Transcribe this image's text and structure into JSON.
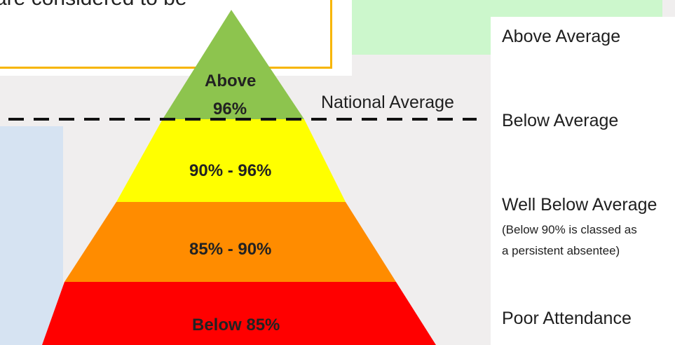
{
  "note": {
    "text": "are considered to be"
  },
  "pyramid": {
    "tiers": [
      {
        "line1": "Above",
        "line2": "96%",
        "color": "#8dc44e"
      },
      {
        "line1": "90% - 96%",
        "color": "#ffff00"
      },
      {
        "line1": "85% - 90%",
        "color": "#ff8c00"
      },
      {
        "line1": "Below 85%",
        "color": "#ff0000"
      }
    ],
    "national_average_label": "National Average"
  },
  "legend": {
    "items": [
      {
        "label": "Above Average"
      },
      {
        "label": "Below Average"
      },
      {
        "label": "Well Below Average",
        "sub1": "(Below 90% is classed as",
        "sub2": "a persistent absentee)"
      },
      {
        "label": "Poor Attendance"
      }
    ]
  },
  "colors": {
    "note_border": "#f7b500",
    "top_panel": "#ccf7cc",
    "side_panel": "#d6e3f2"
  }
}
